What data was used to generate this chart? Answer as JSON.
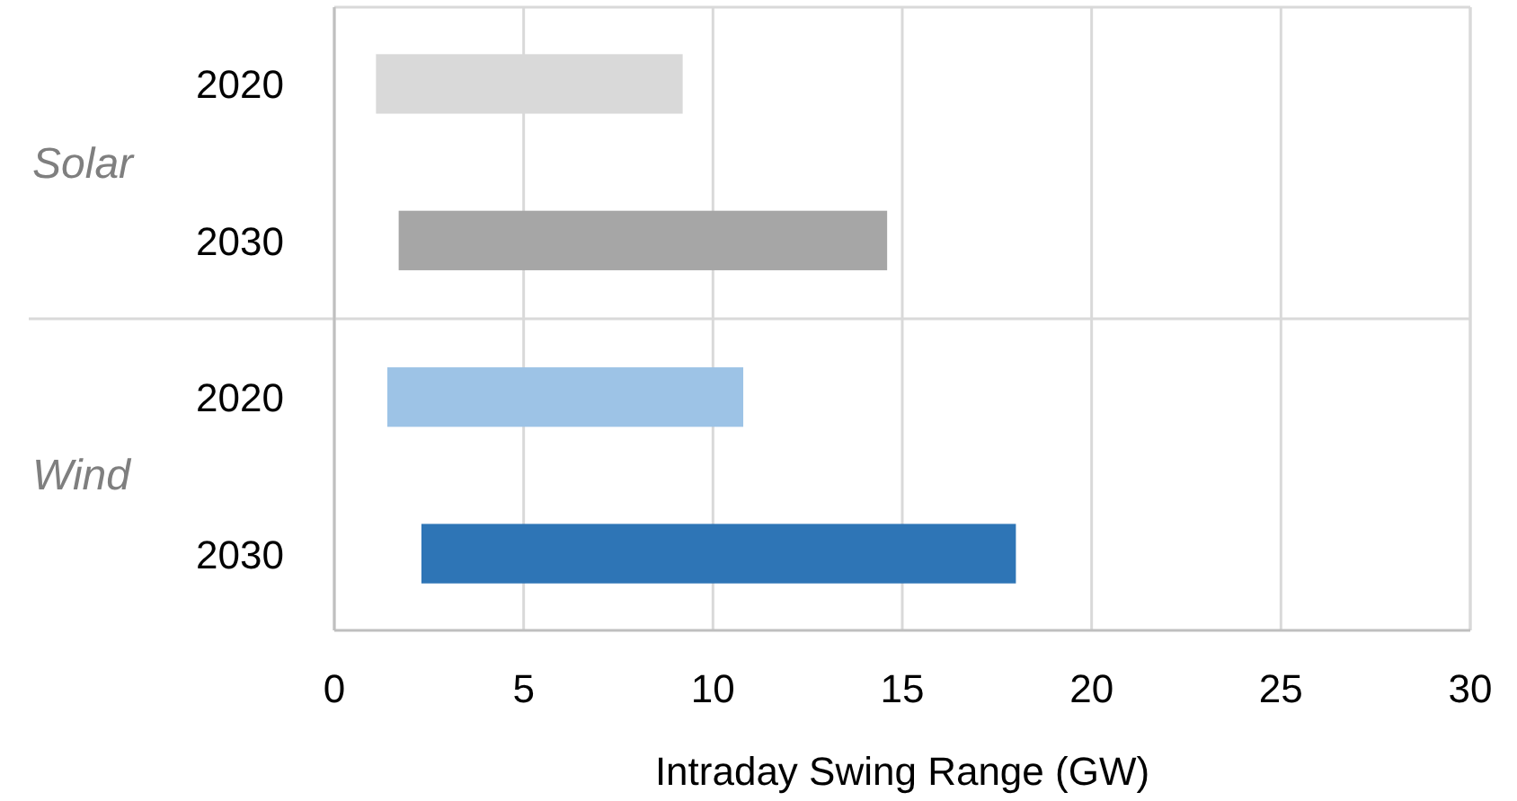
{
  "chart_data": {
    "type": "bar",
    "orientation": "horizontal",
    "xlabel": "Intraday Swing Range (GW)",
    "categories": [
      "2020",
      "2030",
      "2020",
      "2030"
    ],
    "values": [
      8.1,
      12.9,
      9.4,
      15.7
    ],
    "base": [
      1.1,
      1.7,
      1.4,
      2.3
    ],
    "colors": [
      "#d9d9d9",
      "#a6a6a6",
      "#9dc3e6",
      "#2e75b6"
    ],
    "xlim": [
      0,
      30
    ],
    "xticks": [
      0,
      5,
      10,
      15,
      20,
      25,
      30
    ],
    "grid": "x",
    "annotations": [
      "Solar",
      "Wind"
    ]
  }
}
